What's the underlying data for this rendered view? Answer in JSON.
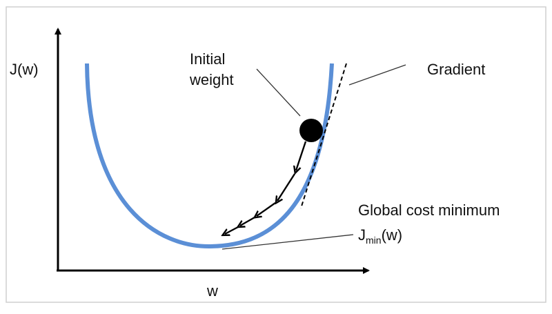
{
  "labels": {
    "y_axis": "J(w)",
    "x_axis": "w",
    "initial_weight_line1": "Initial",
    "initial_weight_line2": "weight",
    "gradient": "Gradient",
    "global_min_title": "Global cost minimum",
    "jmin_base": "J",
    "jmin_sub": "min",
    "jmin_arg": "(w)"
  },
  "colors": {
    "curve": "#5b8fd6",
    "axes": "#000000",
    "frame": "#cfcfcf",
    "text": "#111111",
    "ball": "#000000",
    "steps": "#000000",
    "leader": "#333333"
  }
}
